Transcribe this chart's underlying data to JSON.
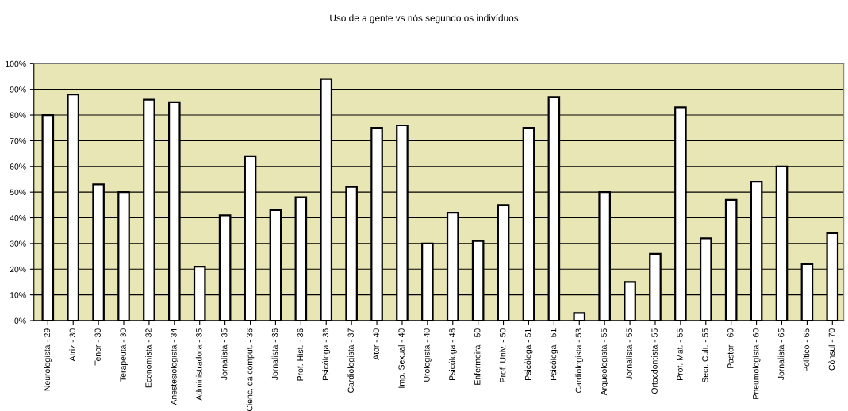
{
  "chart_data": {
    "type": "bar",
    "title": "Uso de a gente vs nós segundo os indivíduos",
    "categories": [
      "Neurologista - 29",
      "Atriz - 30",
      "Tenor - 30",
      "Terapeuta - 30",
      "Economista - 32",
      "Anestesiologista - 34",
      "Administradora - 35",
      "Jornalista - 35",
      "Cienc. da comput. - 36",
      "Jornalista - 36",
      "Prof. Hist. - 36",
      "Psicóloga - 36",
      "Cardiologista - 37",
      "Ator - 40",
      "Imp. Sexual - 40",
      "Urologista - 40",
      "Psicóloga - 48",
      "Enfermeira - 50",
      "Prof. Univ. - 50",
      "Psicóloga - 51",
      "Psicóloga - 51",
      "Cardiologista - 53",
      "Arqueologista - 55",
      "Jornalista - 55",
      "Ortocdontista - 55",
      "Prof. Mat. - 55",
      "Secr. Cult. - 55",
      "Pastor - 60",
      "Pneumologista - 60",
      "Jornalista - 65",
      "Político - 65",
      "Cônsul - 70"
    ],
    "values": [
      80,
      88,
      53,
      50,
      86,
      85,
      21,
      41,
      64,
      43,
      48,
      94,
      52,
      75,
      76,
      30,
      42,
      31,
      45,
      75,
      87,
      3,
      50,
      15,
      26,
      83,
      32,
      47,
      54,
      60,
      22,
      34
    ],
    "color": "#ffffff",
    "ylim": [
      0,
      100
    ],
    "yticks": [
      {
        "value": 0,
        "label": "0%"
      },
      {
        "value": 10,
        "label": "10%"
      },
      {
        "value": 20,
        "label": "20%"
      },
      {
        "value": 30,
        "label": "30%"
      },
      {
        "value": 40,
        "label": "40%"
      },
      {
        "value": 50,
        "label": "50%"
      },
      {
        "value": 60,
        "label": "60%"
      },
      {
        "value": 70,
        "label": "70%"
      },
      {
        "value": 80,
        "label": "80%"
      },
      {
        "value": 90,
        "label": "90%"
      },
      {
        "value": 100,
        "label": "100%"
      }
    ],
    "grid": "y"
  }
}
